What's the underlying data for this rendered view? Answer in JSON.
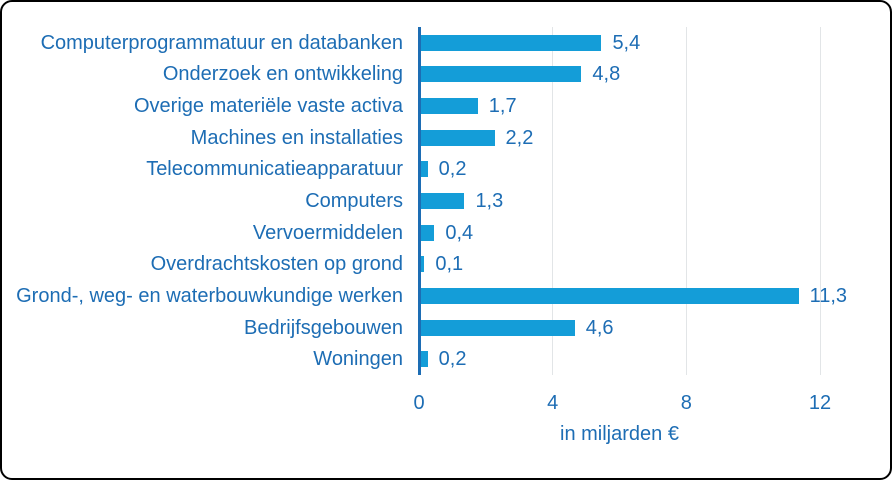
{
  "chart_data": {
    "type": "bar",
    "orientation": "horizontal",
    "xlabel": "in miljarden €",
    "categories": [
      "Computerprogrammatuur en databanken",
      "Onderzoek en ontwikkeling",
      "Overige materiële vaste activa",
      "Machines en installaties",
      "Telecommunicatieapparatuur",
      "Computers",
      "Vervoermiddelen",
      "Overdrachtskosten op grond",
      "Grond-, weg- en waterbouwkundige werken",
      "Bedrijfsgebouwen",
      "Woningen"
    ],
    "values": [
      5.4,
      4.8,
      1.7,
      2.2,
      0.2,
      1.3,
      0.4,
      0.1,
      11.3,
      4.6,
      0.2
    ],
    "value_labels": [
      "5,4",
      "4,8",
      "1,7",
      "2,2",
      "0,2",
      "1,3",
      "0,4",
      "0,1",
      "11,3",
      "4,6",
      "0,2"
    ],
    "x_ticks": [
      0,
      4,
      8,
      12
    ],
    "xlim": [
      0,
      12
    ],
    "grid": true,
    "legend": "none",
    "colors": {
      "bar": "#149dd8",
      "text": "#1d6db4",
      "axis_line": "#1d6db4",
      "gridline": "#e2e5e7",
      "frame_border": "#000000",
      "background": "#ffffff"
    }
  }
}
